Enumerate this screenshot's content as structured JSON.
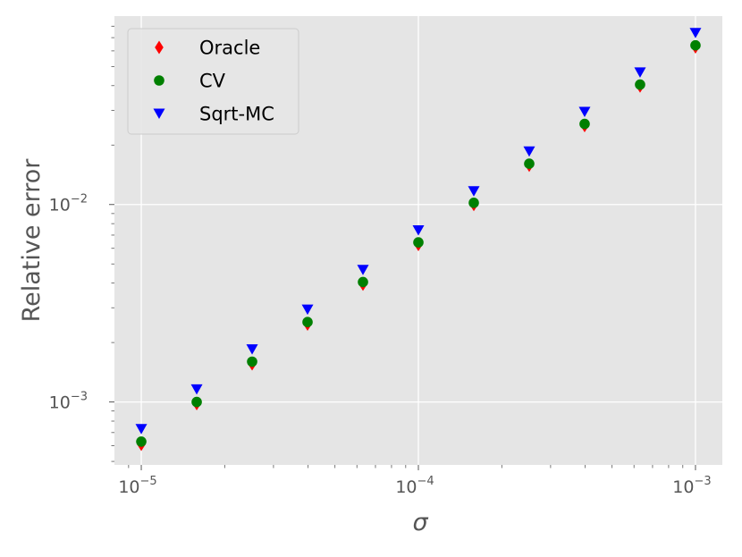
{
  "chart_data": {
    "type": "scatter",
    "xlabel": "σ",
    "ylabel": "Relative error",
    "xscale": "log",
    "yscale": "log",
    "xlim": [
      8e-06,
      0.00125
    ],
    "ylim": [
      0.00048,
      0.09
    ],
    "grid": true,
    "legend_position": "top-left",
    "background": "#e5e5e5",
    "x": [
      1e-05,
      1.585e-05,
      2.512e-05,
      3.981e-05,
      6.31e-05,
      0.0001,
      0.0001585,
      0.0002512,
      0.0003981,
      0.000631,
      0.001
    ],
    "x_ticks": [
      {
        "value": 1e-05,
        "base": "10",
        "exp": "−5"
      },
      {
        "value": 0.0001,
        "base": "10",
        "exp": "−4"
      },
      {
        "value": 0.001,
        "base": "10",
        "exp": "−3"
      }
    ],
    "y_ticks": [
      {
        "value": 0.001,
        "base": "10",
        "exp": "−3"
      },
      {
        "value": 0.01,
        "base": "10",
        "exp": "−2"
      }
    ],
    "series": [
      {
        "name": "Oracle",
        "marker": "diamond",
        "color": "#ff0000",
        "values": [
          0.00061,
          0.00098,
          0.00156,
          0.00248,
          0.00395,
          0.00627,
          0.01,
          0.0158,
          0.0251,
          0.0398,
          0.0628
        ]
      },
      {
        "name": "CV",
        "marker": "circle",
        "color": "#008000",
        "values": [
          0.00063,
          0.001,
          0.0016,
          0.00254,
          0.00405,
          0.00643,
          0.0102,
          0.0161,
          0.0256,
          0.0405,
          0.064
        ]
      },
      {
        "name": "Sqrt-MC",
        "marker": "triangle-down",
        "color": "#0000ff",
        "values": [
          0.00073,
          0.00116,
          0.00185,
          0.00294,
          0.00467,
          0.00741,
          0.0117,
          0.0186,
          0.0295,
          0.0467,
          0.074
        ]
      }
    ]
  }
}
